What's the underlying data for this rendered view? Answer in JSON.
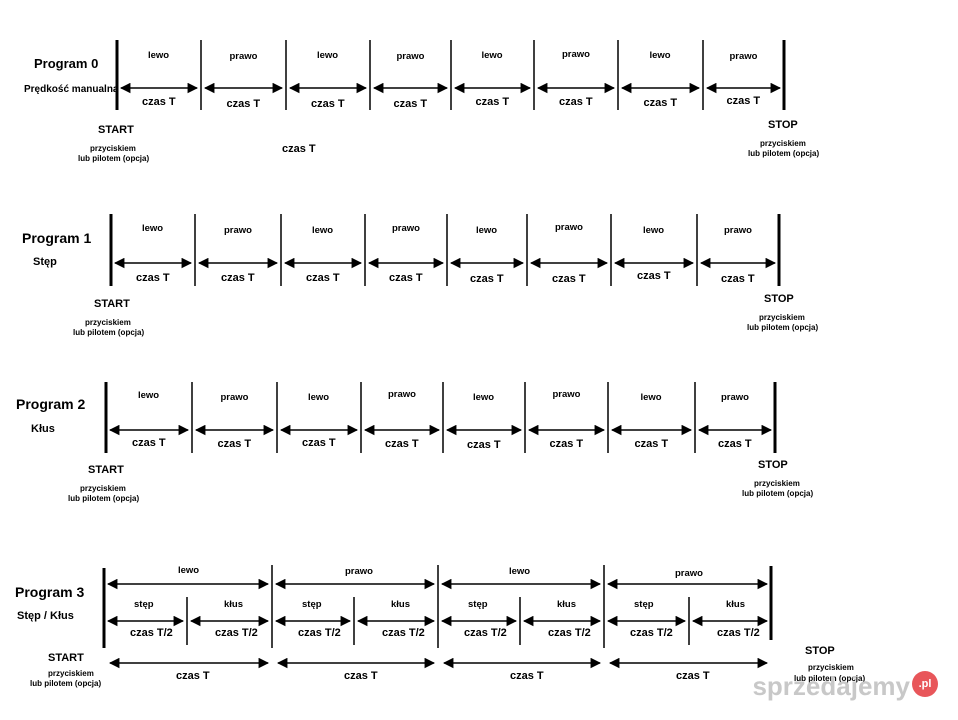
{
  "programs": [
    {
      "title": "Program 0",
      "mode": "Prędkość manualna"
    },
    {
      "title": "Program 1",
      "mode": "Stęp"
    },
    {
      "title": "Program  2",
      "mode": "Kłus"
    },
    {
      "title": "Program 3",
      "mode": "Stęp / Kłus"
    }
  ],
  "labels": {
    "lewo": "lewo",
    "prawo": "prawo",
    "czas_t": "czas T",
    "czas_t2": "czas T/2",
    "stęp": "stęp",
    "kłus": "kłus",
    "start": "START",
    "stop": "STOP",
    "przyciskiem": "przyciskiem",
    "lub_pilotem": "lub pilotem (opcja)",
    "lub_pilotem_cut": "lub pilotem (opcja)"
  },
  "program0_extra": "czas T",
  "watermark": {
    "text": "sprzedajemy",
    "badge": ".pl"
  }
}
